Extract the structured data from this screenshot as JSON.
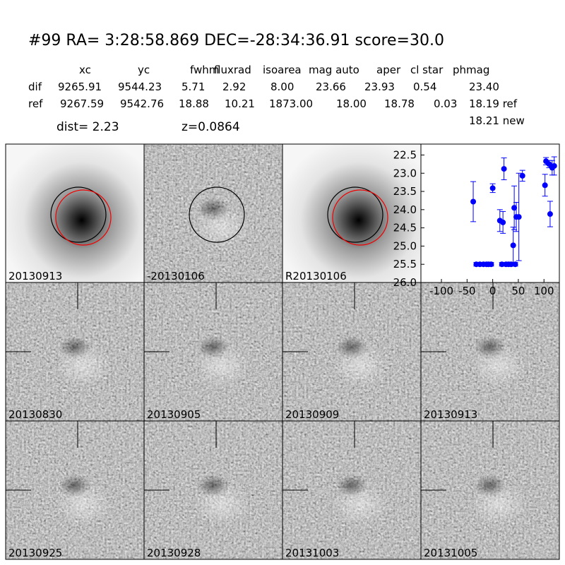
{
  "header": {
    "title": "#99   RA= 3:28:58.869 DEC=-28:34:36.91      score=30.0",
    "columns": [
      "xc",
      "yc",
      "fwhm",
      "fluxrad",
      "isoarea",
      "mag auto",
      "aper",
      "cl star",
      "phmag"
    ],
    "rows": [
      {
        "label": "dif",
        "cells": [
          "9265.91",
          "9544.23",
          "5.71",
          "2.92",
          "8.00",
          "23.66",
          "23.93",
          "0.54",
          "23.40"
        ]
      },
      {
        "label": "ref",
        "cells": [
          "9267.59",
          "9542.76",
          "18.88",
          "10.21",
          "1873.00",
          "18.00",
          "18.78",
          "0.03",
          "18.19 ref"
        ]
      }
    ],
    "extra": "18.21 new",
    "dist": "dist=  2.23",
    "z": "z=0.0864"
  },
  "stamps": [
    {
      "label": "20130913"
    },
    {
      "label": "-20130106"
    },
    {
      "label": "R20130106"
    },
    {
      "label": "20130830"
    },
    {
      "label": "20130905"
    },
    {
      "label": "20130909"
    },
    {
      "label": "20130913",
      "color": "#ff0000"
    },
    {
      "label": "20130925"
    },
    {
      "label": "20130928"
    },
    {
      "label": "20131003"
    },
    {
      "label": "20131005"
    }
  ],
  "chart_data": {
    "type": "scatter",
    "xlim": [
      -140,
      130
    ],
    "ylim": [
      26.0,
      22.2
    ],
    "xticks": [
      -100,
      -50,
      0,
      50,
      100
    ],
    "yticks": [
      22.5,
      {
        "value": 23,
        "label": "23.0"
      },
      23.5,
      {
        "value": 24,
        "label": "24.0"
      },
      24.5,
      {
        "value": 25,
        "label": "25.0"
      },
      25.5,
      {
        "value": 26,
        "label": "26.0"
      }
    ],
    "series": [
      {
        "color": "#0000ff",
        "x": [
          -38,
          -32,
          -25,
          -18,
          -12,
          -8,
          -3,
          0,
          14,
          18,
          20,
          22,
          26,
          31,
          36,
          40,
          42,
          44,
          46,
          51,
          58,
          102,
          104,
          110,
          112,
          116,
          120
        ],
        "values": [
          23.78,
          25.5,
          25.5,
          25.5,
          25.5,
          25.5,
          25.5,
          23.41,
          24.3,
          25.5,
          24.35,
          22.88,
          25.5,
          25.5,
          25.5,
          24.98,
          23.95,
          25.5,
          24.2,
          24.2,
          23.07,
          23.33,
          22.67,
          22.75,
          24.12,
          22.85,
          22.8
        ],
        "errors": [
          0.55,
          0.05,
          0.05,
          0.05,
          0.05,
          0.05,
          0.05,
          0.12,
          0.3,
          0.05,
          0.3,
          0.3,
          0.05,
          0.05,
          0.05,
          0.5,
          0.6,
          0.05,
          0.4,
          1.2,
          0.15,
          0.3,
          0.1,
          0.1,
          0.35,
          0.2,
          0.25
        ]
      }
    ]
  }
}
